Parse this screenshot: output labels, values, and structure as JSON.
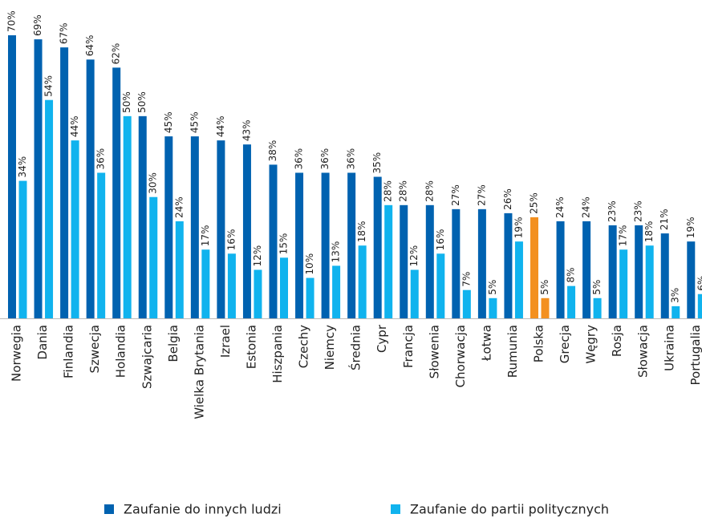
{
  "chart_data": {
    "type": "bar",
    "categories": [
      "Norwegia",
      "Dania",
      "Finlandia",
      "Szwecja",
      "Holandia",
      "Szwajcaria",
      "Belgia",
      "Wielka Brytania",
      "Izrael",
      "Estonia",
      "Hiszpania",
      "Czechy",
      "Niemcy",
      "Średnia",
      "Cypr",
      "Francja",
      "Słowenia",
      "Chorwacja",
      "Łotwa",
      "Rumunia",
      "Polska",
      "Grecja",
      "Węgry",
      "Rosja",
      "Słowacja",
      "Ukraina",
      "Portugalia"
    ],
    "series": [
      {
        "name": "Zaufanie do innych ludzi",
        "color": "#0062b0",
        "values": [
          70,
          69,
          67,
          64,
          62,
          50,
          45,
          45,
          44,
          43,
          38,
          36,
          36,
          36,
          35,
          28,
          28,
          27,
          27,
          26,
          25,
          24,
          24,
          23,
          23,
          21,
          19
        ],
        "value_labels": [
          "70%",
          "69%",
          "67%",
          "64%",
          "62%",
          "50%",
          "45%",
          "45%",
          "44%",
          "43%",
          "38%",
          "36%",
          "36%",
          "36%",
          "35%",
          "28%",
          "28%",
          "27%",
          "27%",
          "26%",
          "25%",
          "24%",
          "24%",
          "23%",
          "23%",
          "21%",
          "19%"
        ],
        "colors": [
          "#0062b0",
          "#0062b0",
          "#0062b0",
          "#0062b0",
          "#0062b0",
          "#0062b0",
          "#0062b0",
          "#0062b0",
          "#0062b0",
          "#0062b0",
          "#0062b0",
          "#0062b0",
          "#0062b0",
          "#0062b0",
          "#0062b0",
          "#0062b0",
          "#0062b0",
          "#0062b0",
          "#0062b0",
          "#0062b0",
          "#f39020",
          "#0062b0",
          "#0062b0",
          "#0062b0",
          "#0062b0",
          "#0062b0",
          "#0062b0"
        ]
      },
      {
        "name": "Zaufanie do partii politycznych",
        "color": "#10b3ee",
        "values": [
          34,
          54,
          44,
          36,
          50,
          30,
          24,
          17,
          16,
          12,
          15,
          10,
          13,
          18,
          28,
          12,
          16,
          7,
          5,
          19,
          5,
          8,
          5,
          17,
          18,
          3,
          6
        ],
        "value_labels": [
          "34%",
          "54%",
          "44%",
          "36%",
          "50%",
          "30%",
          "24%",
          "17%",
          "16%",
          "12%",
          "15%",
          "10%",
          "13%",
          "18%",
          "28%",
          "12%",
          "16%",
          "7%",
          "5%",
          "19%",
          "5%",
          "8%",
          "5%",
          "17%",
          "18%",
          "3%",
          "6%"
        ],
        "colors": [
          "#10b3ee",
          "#10b3ee",
          "#10b3ee",
          "#10b3ee",
          "#10b3ee",
          "#10b3ee",
          "#10b3ee",
          "#10b3ee",
          "#10b3ee",
          "#10b3ee",
          "#10b3ee",
          "#10b3ee",
          "#10b3ee",
          "#10b3ee",
          "#10b3ee",
          "#10b3ee",
          "#10b3ee",
          "#10b3ee",
          "#10b3ee",
          "#10b3ee",
          "#f39020",
          "#10b3ee",
          "#10b3ee",
          "#10b3ee",
          "#10b3ee",
          "#10b3ee",
          "#10b3ee"
        ]
      }
    ],
    "ylim": [
      0,
      70
    ]
  }
}
